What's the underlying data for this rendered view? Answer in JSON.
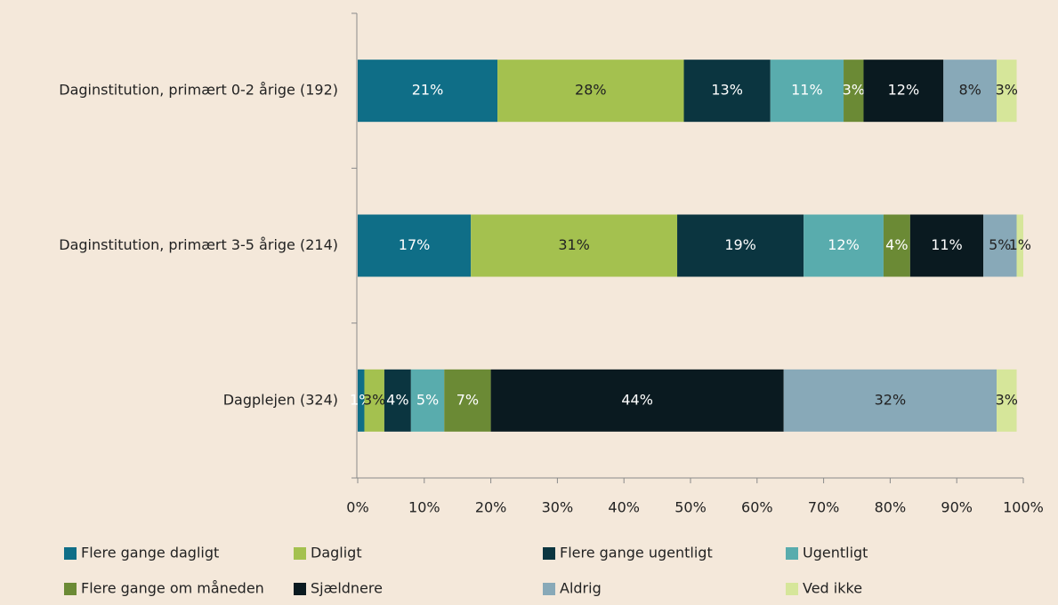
{
  "chart_data": {
    "type": "stacked-bar-horizontal",
    "categories": [
      "Daginstitution, primært 0-2 årige (192)",
      "Daginstitution, primært 3-5 årige (214)",
      "Dagplejen (324)"
    ],
    "series": [
      {
        "name": "Flere gange dagligt",
        "color": "#0f6e87",
        "values": [
          21,
          17,
          1
        ],
        "value_labels": [
          "21%",
          "17%",
          "1%"
        ]
      },
      {
        "name": "Dagligt",
        "color": "#a4c14f",
        "values": [
          28,
          31,
          3
        ],
        "value_labels": [
          "28%",
          "31%",
          "3%"
        ]
      },
      {
        "name": "Flere gange ugentligt",
        "color": "#0b3540",
        "values": [
          13,
          19,
          4
        ],
        "value_labels": [
          "13%",
          "19%",
          "4%"
        ]
      },
      {
        "name": "Ugentligt",
        "color": "#59acad",
        "values": [
          11,
          12,
          5
        ],
        "value_labels": [
          "11%",
          "12%",
          "5%"
        ]
      },
      {
        "name": "Flere gange om måneden",
        "color": "#6b8a35",
        "values": [
          3,
          4,
          7
        ],
        "value_labels": [
          "3%",
          "4%",
          "7%"
        ]
      },
      {
        "name": "Sjældnere",
        "color": "#0a1a20",
        "values": [
          12,
          11,
          44
        ],
        "value_labels": [
          "12%",
          "11%",
          "44%"
        ]
      },
      {
        "name": "Aldrig",
        "color": "#88a9b8",
        "values": [
          8,
          5,
          32
        ],
        "value_labels": [
          "8%",
          "5%",
          "32%"
        ]
      },
      {
        "name": "Ved ikke",
        "color": "#d6e69a",
        "values": [
          3,
          1,
          3
        ],
        "value_labels": [
          "3%",
          "1%",
          "3%"
        ]
      }
    ],
    "xlim": [
      0,
      100
    ],
    "xticks": [
      {
        "value": 0,
        "label": "0%"
      },
      {
        "value": 10,
        "label": "10%"
      },
      {
        "value": 20,
        "label": "20%"
      },
      {
        "value": 30,
        "label": "30%"
      },
      {
        "value": 40,
        "label": "40%"
      },
      {
        "value": 50,
        "label": "50%"
      },
      {
        "value": 60,
        "label": "60%"
      },
      {
        "value": 70,
        "label": "70%"
      },
      {
        "value": 80,
        "label": "80%"
      },
      {
        "value": 90,
        "label": "90%"
      },
      {
        "value": 100,
        "label": "100%"
      }
    ],
    "legend": "bottom"
  }
}
